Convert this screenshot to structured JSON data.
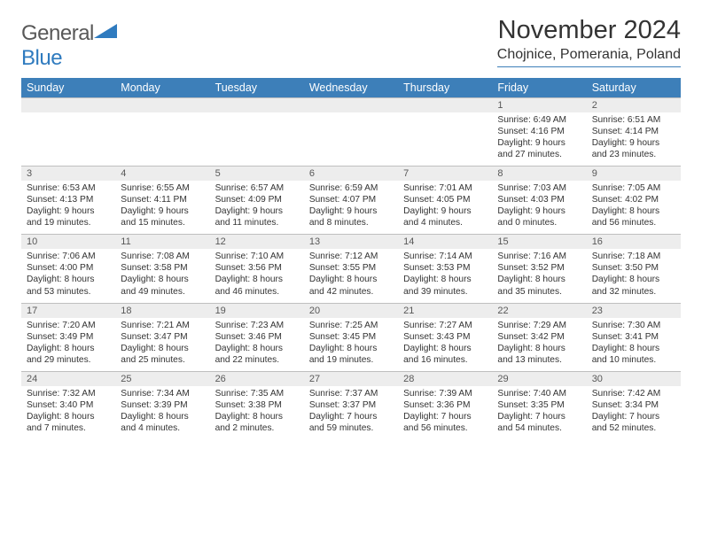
{
  "logo": {
    "general": "General",
    "blue": "Blue"
  },
  "title": "November 2024",
  "location": "Chojnice, Pomerania, Poland",
  "colors": {
    "header_bg": "#3d7fb9",
    "header_fg": "#ffffff",
    "daynum_bg": "#ededed",
    "text": "#333333",
    "muted": "#585858",
    "rule": "#bfbfbf",
    "brand_gray": "#585858",
    "brand_blue": "#2f7bbf"
  },
  "day_headers": [
    "Sunday",
    "Monday",
    "Tuesday",
    "Wednesday",
    "Thursday",
    "Friday",
    "Saturday"
  ],
  "weeks": [
    [
      {
        "n": "",
        "lines": []
      },
      {
        "n": "",
        "lines": []
      },
      {
        "n": "",
        "lines": []
      },
      {
        "n": "",
        "lines": []
      },
      {
        "n": "",
        "lines": []
      },
      {
        "n": "1",
        "lines": [
          "Sunrise: 6:49 AM",
          "Sunset: 4:16 PM",
          "Daylight: 9 hours",
          "and 27 minutes."
        ]
      },
      {
        "n": "2",
        "lines": [
          "Sunrise: 6:51 AM",
          "Sunset: 4:14 PM",
          "Daylight: 9 hours",
          "and 23 minutes."
        ]
      }
    ],
    [
      {
        "n": "3",
        "lines": [
          "Sunrise: 6:53 AM",
          "Sunset: 4:13 PM",
          "Daylight: 9 hours",
          "and 19 minutes."
        ]
      },
      {
        "n": "4",
        "lines": [
          "Sunrise: 6:55 AM",
          "Sunset: 4:11 PM",
          "Daylight: 9 hours",
          "and 15 minutes."
        ]
      },
      {
        "n": "5",
        "lines": [
          "Sunrise: 6:57 AM",
          "Sunset: 4:09 PM",
          "Daylight: 9 hours",
          "and 11 minutes."
        ]
      },
      {
        "n": "6",
        "lines": [
          "Sunrise: 6:59 AM",
          "Sunset: 4:07 PM",
          "Daylight: 9 hours",
          "and 8 minutes."
        ]
      },
      {
        "n": "7",
        "lines": [
          "Sunrise: 7:01 AM",
          "Sunset: 4:05 PM",
          "Daylight: 9 hours",
          "and 4 minutes."
        ]
      },
      {
        "n": "8",
        "lines": [
          "Sunrise: 7:03 AM",
          "Sunset: 4:03 PM",
          "Daylight: 9 hours",
          "and 0 minutes."
        ]
      },
      {
        "n": "9",
        "lines": [
          "Sunrise: 7:05 AM",
          "Sunset: 4:02 PM",
          "Daylight: 8 hours",
          "and 56 minutes."
        ]
      }
    ],
    [
      {
        "n": "10",
        "lines": [
          "Sunrise: 7:06 AM",
          "Sunset: 4:00 PM",
          "Daylight: 8 hours",
          "and 53 minutes."
        ]
      },
      {
        "n": "11",
        "lines": [
          "Sunrise: 7:08 AM",
          "Sunset: 3:58 PM",
          "Daylight: 8 hours",
          "and 49 minutes."
        ]
      },
      {
        "n": "12",
        "lines": [
          "Sunrise: 7:10 AM",
          "Sunset: 3:56 PM",
          "Daylight: 8 hours",
          "and 46 minutes."
        ]
      },
      {
        "n": "13",
        "lines": [
          "Sunrise: 7:12 AM",
          "Sunset: 3:55 PM",
          "Daylight: 8 hours",
          "and 42 minutes."
        ]
      },
      {
        "n": "14",
        "lines": [
          "Sunrise: 7:14 AM",
          "Sunset: 3:53 PM",
          "Daylight: 8 hours",
          "and 39 minutes."
        ]
      },
      {
        "n": "15",
        "lines": [
          "Sunrise: 7:16 AM",
          "Sunset: 3:52 PM",
          "Daylight: 8 hours",
          "and 35 minutes."
        ]
      },
      {
        "n": "16",
        "lines": [
          "Sunrise: 7:18 AM",
          "Sunset: 3:50 PM",
          "Daylight: 8 hours",
          "and 32 minutes."
        ]
      }
    ],
    [
      {
        "n": "17",
        "lines": [
          "Sunrise: 7:20 AM",
          "Sunset: 3:49 PM",
          "Daylight: 8 hours",
          "and 29 minutes."
        ]
      },
      {
        "n": "18",
        "lines": [
          "Sunrise: 7:21 AM",
          "Sunset: 3:47 PM",
          "Daylight: 8 hours",
          "and 25 minutes."
        ]
      },
      {
        "n": "19",
        "lines": [
          "Sunrise: 7:23 AM",
          "Sunset: 3:46 PM",
          "Daylight: 8 hours",
          "and 22 minutes."
        ]
      },
      {
        "n": "20",
        "lines": [
          "Sunrise: 7:25 AM",
          "Sunset: 3:45 PM",
          "Daylight: 8 hours",
          "and 19 minutes."
        ]
      },
      {
        "n": "21",
        "lines": [
          "Sunrise: 7:27 AM",
          "Sunset: 3:43 PM",
          "Daylight: 8 hours",
          "and 16 minutes."
        ]
      },
      {
        "n": "22",
        "lines": [
          "Sunrise: 7:29 AM",
          "Sunset: 3:42 PM",
          "Daylight: 8 hours",
          "and 13 minutes."
        ]
      },
      {
        "n": "23",
        "lines": [
          "Sunrise: 7:30 AM",
          "Sunset: 3:41 PM",
          "Daylight: 8 hours",
          "and 10 minutes."
        ]
      }
    ],
    [
      {
        "n": "24",
        "lines": [
          "Sunrise: 7:32 AM",
          "Sunset: 3:40 PM",
          "Daylight: 8 hours",
          "and 7 minutes."
        ]
      },
      {
        "n": "25",
        "lines": [
          "Sunrise: 7:34 AM",
          "Sunset: 3:39 PM",
          "Daylight: 8 hours",
          "and 4 minutes."
        ]
      },
      {
        "n": "26",
        "lines": [
          "Sunrise: 7:35 AM",
          "Sunset: 3:38 PM",
          "Daylight: 8 hours",
          "and 2 minutes."
        ]
      },
      {
        "n": "27",
        "lines": [
          "Sunrise: 7:37 AM",
          "Sunset: 3:37 PM",
          "Daylight: 7 hours",
          "and 59 minutes."
        ]
      },
      {
        "n": "28",
        "lines": [
          "Sunrise: 7:39 AM",
          "Sunset: 3:36 PM",
          "Daylight: 7 hours",
          "and 56 minutes."
        ]
      },
      {
        "n": "29",
        "lines": [
          "Sunrise: 7:40 AM",
          "Sunset: 3:35 PM",
          "Daylight: 7 hours",
          "and 54 minutes."
        ]
      },
      {
        "n": "30",
        "lines": [
          "Sunrise: 7:42 AM",
          "Sunset: 3:34 PM",
          "Daylight: 7 hours",
          "and 52 minutes."
        ]
      }
    ]
  ]
}
